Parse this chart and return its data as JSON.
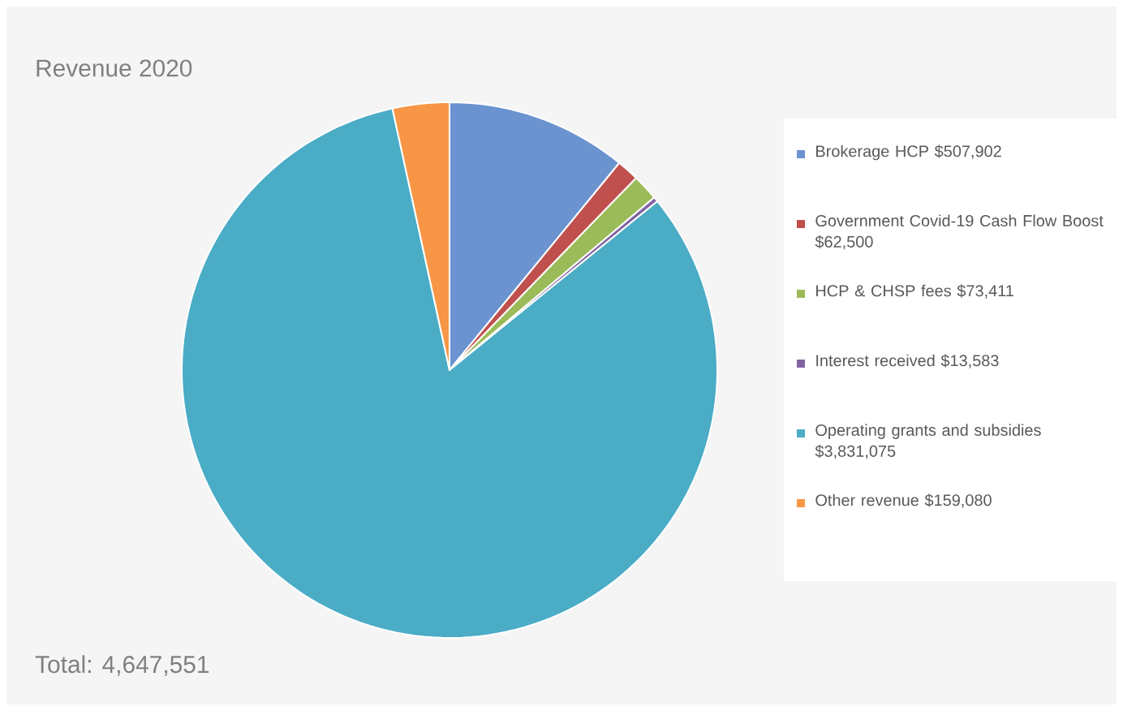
{
  "chart_data": {
    "type": "pie",
    "title": "Revenue 2020",
    "categories": [
      "Brokerage HCP $507,902",
      "Government Covid-19 Cash Flow Boost $62,500",
      "HCP & CHSP fees $73,411",
      "Interest received $13,583",
      "Operating grants and subsidies $3,831,075",
      "Other revenue $159,080"
    ],
    "values": [
      507902,
      62500,
      73411,
      13583,
      3831075,
      159080
    ],
    "colors": [
      "#6a93cf",
      "#c0504d",
      "#9bbb59",
      "#8064a2",
      "#4bacc6",
      "#f79646"
    ],
    "legend": "right",
    "annotations": [
      "Total: 4,647,551"
    ]
  }
}
